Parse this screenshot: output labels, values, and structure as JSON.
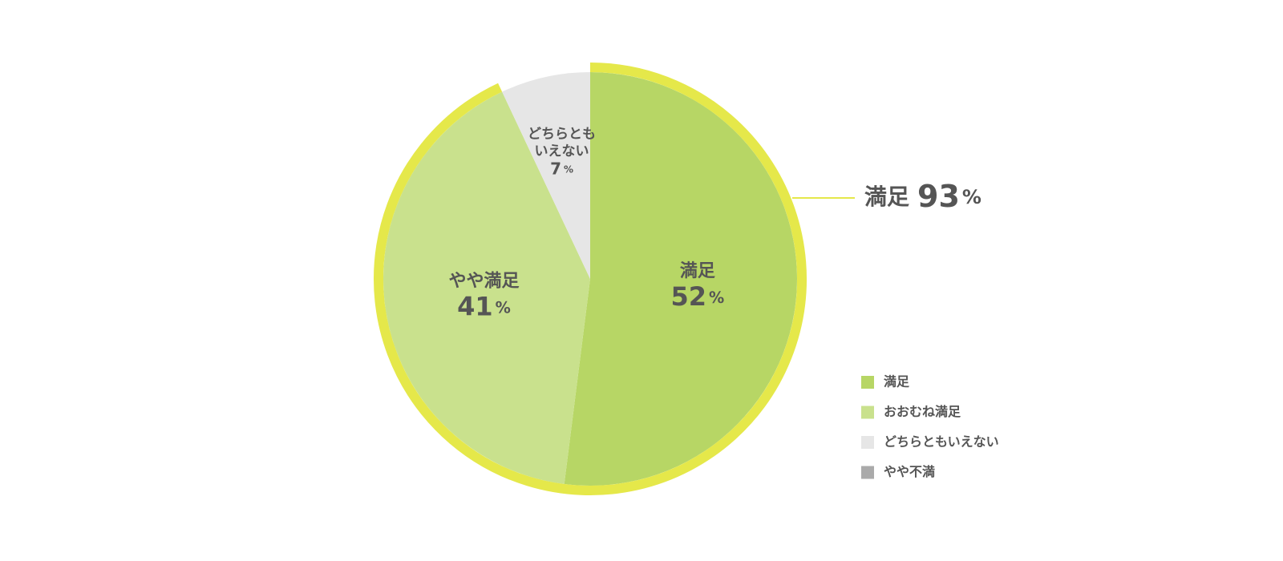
{
  "chart_data": {
    "type": "pie",
    "categories": [
      "満足",
      "おおむね満足",
      "どちらともいえない",
      "やや不満"
    ],
    "values": [
      52,
      41,
      7,
      0
    ],
    "colors": [
      "#b7d665",
      "#c9e18d",
      "#e6e6e6",
      "#aaaaaa"
    ],
    "slice_labels": [
      [
        "満足"
      ],
      [
        "やや満足"
      ],
      [
        "どちらとも",
        "いえない"
      ],
      null
    ],
    "unit": "%",
    "highlight": {
      "label": "満足",
      "value": 93,
      "color": "#e5e84a"
    },
    "legend": "right"
  }
}
